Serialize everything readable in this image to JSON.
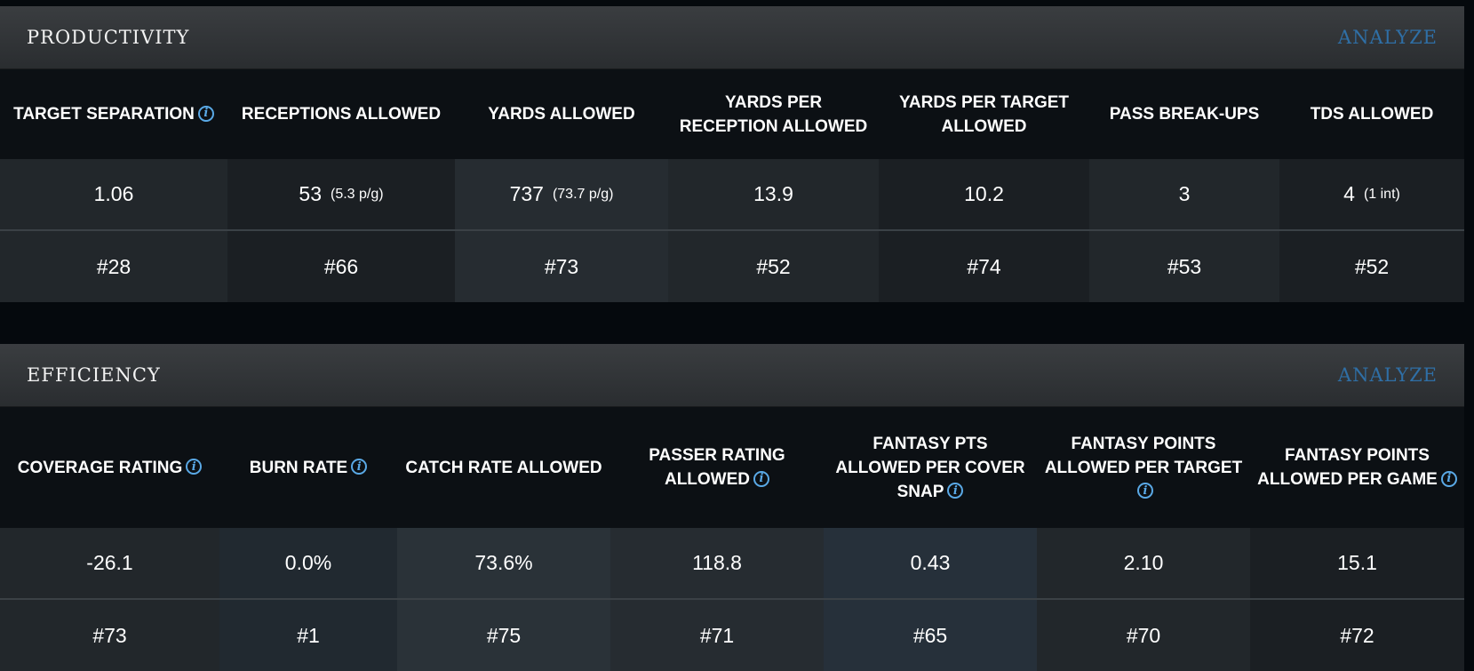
{
  "productivity": {
    "title": "PRODUCTIVITY",
    "analyze_label": "ANALYZE",
    "headers": [
      {
        "label": "TARGET SEPARATION",
        "info": true
      },
      {
        "label": "RECEPTIONS ALLOWED",
        "info": false
      },
      {
        "label": "YARDS ALLOWED",
        "info": false
      },
      {
        "label": "YARDS PER RECEPTION ALLOWED",
        "info": false
      },
      {
        "label": "YARDS PER TARGET ALLOWED",
        "info": false
      },
      {
        "label": "PASS BREAK-UPS",
        "info": false
      },
      {
        "label": "TDS ALLOWED",
        "info": false
      }
    ],
    "values": [
      {
        "main": "1.06",
        "sub": ""
      },
      {
        "main": "53",
        "sub": "(5.3 p/g)"
      },
      {
        "main": "737",
        "sub": "(73.7 p/g)"
      },
      {
        "main": "13.9",
        "sub": ""
      },
      {
        "main": "10.2",
        "sub": ""
      },
      {
        "main": "3",
        "sub": ""
      },
      {
        "main": "4",
        "sub": "(1 int)"
      }
    ],
    "ranks": [
      "#28",
      "#66",
      "#73",
      "#52",
      "#74",
      "#53",
      "#52"
    ]
  },
  "efficiency": {
    "title": "EFFICIENCY",
    "analyze_label": "ANALYZE",
    "headers": [
      {
        "label": "COVERAGE RATING",
        "info": true
      },
      {
        "label": "BURN RATE",
        "info": true
      },
      {
        "label": "CATCH RATE ALLOWED",
        "info": false
      },
      {
        "label": "PASSER RATING ALLOWED",
        "info": true
      },
      {
        "label": "FANTASY PTS ALLOWED PER COVER SNAP",
        "info": true
      },
      {
        "label": "FANTASY POINTS ALLOWED PER TARGET",
        "info": true
      },
      {
        "label": "FANTASY POINTS ALLOWED PER GAME",
        "info": true
      }
    ],
    "values": [
      {
        "main": "-26.1",
        "sub": ""
      },
      {
        "main": "0.0%",
        "sub": ""
      },
      {
        "main": "73.6%",
        "sub": ""
      },
      {
        "main": "118.8",
        "sub": ""
      },
      {
        "main": "0.43",
        "sub": ""
      },
      {
        "main": "2.10",
        "sub": ""
      },
      {
        "main": "15.1",
        "sub": ""
      }
    ],
    "ranks": [
      "#73",
      "#1",
      "#75",
      "#71",
      "#65",
      "#70",
      "#72"
    ]
  },
  "icons": {
    "info": "info-icon",
    "info_glyph": "i"
  },
  "colors": {
    "accent": "#2f6fa6",
    "info": "#5aa9e6",
    "background": "#05090d"
  }
}
